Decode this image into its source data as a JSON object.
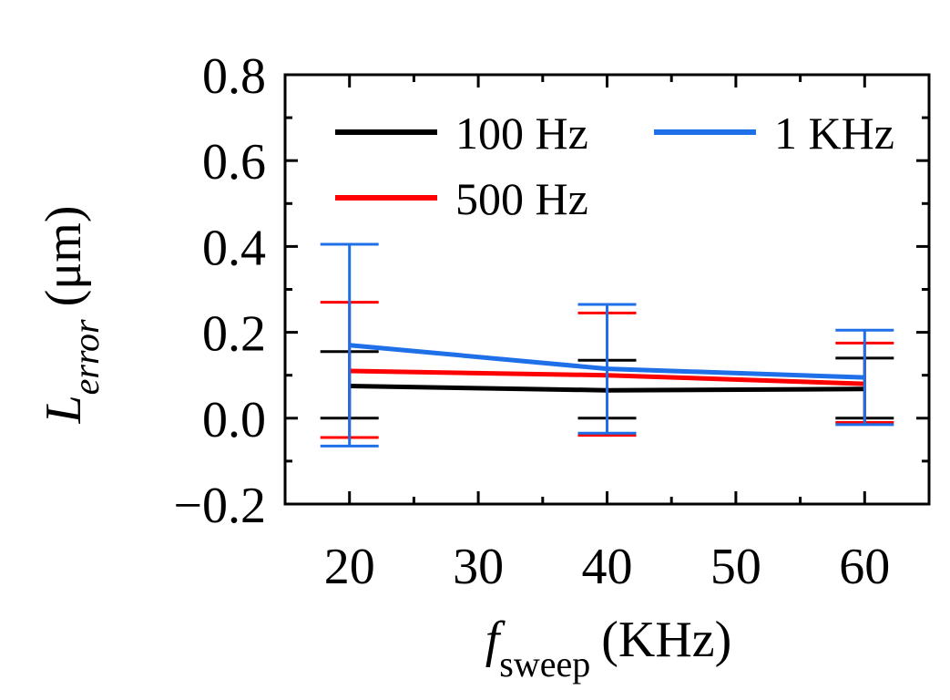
{
  "chart_data": {
    "type": "line",
    "title": "",
    "xlabel": {
      "main": "f",
      "subscript": "sweep",
      "unit": "(KHz)"
    },
    "ylabel": {
      "main": "L",
      "subscript": "error",
      "unit": "(μm)"
    },
    "x": [
      20,
      40,
      60
    ],
    "xlim": [
      15,
      65
    ],
    "ylim": [
      -0.2,
      0.8
    ],
    "xticks": [
      20,
      30,
      40,
      50,
      60
    ],
    "xtick_labels": [
      "20",
      "30",
      "40",
      "50",
      "60"
    ],
    "yticks": [
      -0.2,
      0.0,
      0.2,
      0.4,
      0.6,
      0.8
    ],
    "ytick_labels": [
      "−0.2",
      "0.0",
      "0.2",
      "0.4",
      "0.6",
      "0.8"
    ],
    "legend_position": "top",
    "series": [
      {
        "name": "100 Hz",
        "color": "#000000",
        "values": [
          0.075,
          0.065,
          0.068
        ],
        "err_low": [
          0.0,
          0.0,
          0.0
        ],
        "err_high": [
          0.155,
          0.135,
          0.14
        ]
      },
      {
        "name": "500 Hz",
        "color": "#ff0000",
        "values": [
          0.11,
          0.1,
          0.08
        ],
        "err_low": [
          -0.045,
          -0.04,
          -0.01
        ],
        "err_high": [
          0.27,
          0.245,
          0.175
        ]
      },
      {
        "name": "1 KHz",
        "color": "#1e6fe8",
        "values": [
          0.17,
          0.115,
          0.095
        ],
        "err_low": [
          -0.065,
          -0.035,
          -0.015
        ],
        "err_high": [
          0.405,
          0.265,
          0.205
        ]
      }
    ]
  }
}
